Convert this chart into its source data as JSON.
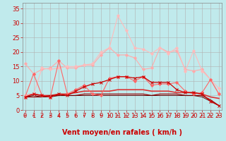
{
  "background_color": "#c0eaec",
  "grid_color": "#b0b0b0",
  "xlabel": "Vent moyen/en rafales ( km/h )",
  "xlabel_color": "#cc0000",
  "xlabel_fontsize": 7,
  "yticks": [
    0,
    5,
    10,
    15,
    20,
    25,
    30,
    35
  ],
  "xtick_labels": [
    "0",
    "1",
    "2",
    "3",
    "4",
    "5",
    "6",
    "7",
    "8",
    "9",
    "10",
    "11",
    "12",
    "13",
    "14",
    "15",
    "16",
    "17",
    "18",
    "19",
    "20",
    "21",
    "22",
    "23"
  ],
  "ylim": [
    0,
    37
  ],
  "xlim": [
    -0.3,
    23.3
  ],
  "tick_color": "#cc0000",
  "ytick_fontsize": 6,
  "xtick_fontsize": 5,
  "lines": [
    {
      "y": [
        16.0,
        12.5,
        14.0,
        14.5,
        17.0,
        14.5,
        14.5,
        15.5,
        15.5,
        19.0,
        21.5,
        19.0,
        19.0,
        18.0,
        14.0,
        14.5,
        21.5,
        20.0,
        20.5,
        14.0,
        13.5,
        14.0,
        10.5,
        5.5
      ],
      "color": "#ffaaaa",
      "linewidth": 0.8,
      "marker": "D",
      "markersize": 2.0,
      "alpha": 1.0
    },
    {
      "y": [
        5.0,
        5.5,
        14.5,
        14.0,
        14.5,
        15.0,
        15.0,
        15.5,
        16.0,
        20.0,
        21.5,
        32.5,
        27.5,
        21.5,
        21.0,
        19.5,
        21.5,
        19.5,
        21.5,
        13.5,
        20.5,
        13.5,
        10.5,
        7.5
      ],
      "color": "#ffbbbb",
      "linewidth": 0.8,
      "marker": "D",
      "markersize": 2.0,
      "alpha": 1.0
    },
    {
      "y": [
        4.5,
        12.5,
        5.0,
        4.5,
        17.0,
        5.5,
        7.0,
        8.5,
        5.5,
        5.0,
        11.0,
        11.5,
        11.5,
        10.0,
        11.5,
        8.5,
        9.0,
        9.0,
        9.5,
        6.5,
        5.5,
        6.0,
        10.5,
        5.5
      ],
      "color": "#ff6666",
      "linewidth": 0.8,
      "marker": "D",
      "markersize": 2.0,
      "alpha": 1.0
    },
    {
      "y": [
        4.5,
        5.5,
        5.0,
        4.5,
        5.5,
        5.0,
        6.5,
        8.0,
        9.0,
        9.5,
        10.5,
        11.5,
        11.5,
        11.0,
        11.5,
        9.5,
        9.5,
        9.5,
        7.0,
        6.0,
        6.0,
        5.5,
        3.0,
        1.5
      ],
      "color": "#cc0000",
      "linewidth": 0.9,
      "marker": "x",
      "markersize": 2.5,
      "markeredgewidth": 0.7,
      "alpha": 1.0
    },
    {
      "y": [
        5.0,
        5.5,
        5.0,
        5.0,
        5.5,
        5.5,
        6.0,
        6.5,
        6.5,
        6.5,
        6.5,
        7.0,
        7.0,
        7.0,
        7.0,
        6.5,
        6.5,
        6.5,
        6.0,
        6.0,
        6.0,
        5.5,
        4.5,
        4.0
      ],
      "color": "#dd3333",
      "linewidth": 1.2,
      "marker": null,
      "markersize": 0,
      "alpha": 1.0
    },
    {
      "y": [
        4.5,
        4.5,
        4.5,
        5.0,
        5.0,
        5.0,
        5.0,
        5.5,
        5.5,
        5.5,
        5.5,
        5.5,
        5.5,
        5.5,
        5.5,
        5.0,
        5.5,
        5.5,
        5.5,
        5.0,
        5.0,
        5.0,
        3.5,
        1.5
      ],
      "color": "#990000",
      "linewidth": 0.9,
      "marker": null,
      "markersize": 0,
      "alpha": 1.0
    },
    {
      "y": [
        4.5,
        5.0,
        4.5,
        4.5,
        5.0,
        5.0,
        5.0,
        5.0,
        5.0,
        5.0,
        5.0,
        5.0,
        5.0,
        5.0,
        5.0,
        5.0,
        5.0,
        5.0,
        5.0,
        5.0,
        5.0,
        4.5,
        3.0,
        1.5
      ],
      "color": "#660000",
      "linewidth": 0.7,
      "marker": null,
      "markersize": 0,
      "alpha": 1.0
    }
  ],
  "arrow_color": "#cc0000"
}
